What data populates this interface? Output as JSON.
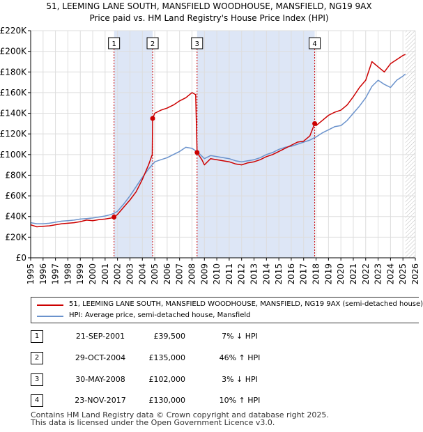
{
  "title": {
    "line1": "51, LEEMING LANE SOUTH, MANSFIELD WOODHOUSE, MANSFIELD, NG19 9AX",
    "line2": "Price paid vs. HM Land Registry's House Price Index (HPI)"
  },
  "colors": {
    "price": "#cc0000",
    "hpi": "#6a92cc",
    "shade": "#dde6f6",
    "grid": "#dddddd"
  },
  "chart_data": {
    "type": "line",
    "title": "Price paid vs. HM Land Registry's House Price Index (HPI)",
    "xlabel": "",
    "ylabel": "",
    "xlim": [
      1995,
      2026
    ],
    "ylim": [
      0,
      220000
    ],
    "y_ticks": [
      0,
      20000,
      40000,
      60000,
      80000,
      100000,
      120000,
      140000,
      160000,
      180000,
      200000,
      220000
    ],
    "y_tick_labels": [
      "£0",
      "£20K",
      "£40K",
      "£60K",
      "£80K",
      "£100K",
      "£120K",
      "£140K",
      "£160K",
      "£180K",
      "£200K",
      "£220K"
    ],
    "x_tick_labels": [
      "1995",
      "1996",
      "1997",
      "1998",
      "1999",
      "2000",
      "2001",
      "2002",
      "2003",
      "2004",
      "2005",
      "2006",
      "2007",
      "2008",
      "2009",
      "2010",
      "2011",
      "2012",
      "2013",
      "2014",
      "2015",
      "2016",
      "2017",
      "2018",
      "2019",
      "2020",
      "2021",
      "2022",
      "2023",
      "2024",
      "2025",
      "2026"
    ],
    "grid": true,
    "legend_position": "bottom",
    "shaded_spans": [
      [
        2001.72,
        2004.83
      ],
      [
        2008.41,
        2017.89
      ]
    ],
    "hatched_from": 2025.2,
    "series": [
      {
        "name": "51, LEEMING LANE SOUTH, MANSFIELD WOODHOUSE, MANSFIELD, NG19 9AX (semi-detached house)",
        "color": "#cc0000",
        "x": [
          1995,
          1995.5,
          1996,
          1996.5,
          1997,
          1997.5,
          1998,
          1998.5,
          1999,
          1999.5,
          2000,
          2000.5,
          2001,
          2001.5,
          2001.72,
          2002,
          2002.5,
          2003,
          2003.5,
          2004,
          2004.5,
          2004.8,
          2004.83,
          2005,
          2005.5,
          2006,
          2006.5,
          2007,
          2007.5,
          2008,
          2008.3,
          2008.41,
          2008.8,
          2009,
          2009.5,
          2010,
          2010.5,
          2011,
          2011.5,
          2012,
          2012.5,
          2013,
          2013.5,
          2014,
          2014.5,
          2015,
          2015.5,
          2016,
          2016.5,
          2017,
          2017.5,
          2017.89,
          2018,
          2018.5,
          2019,
          2019.5,
          2020,
          2020.5,
          2021,
          2021.5,
          2022,
          2022.5,
          2023,
          2023.5,
          2024,
          2024.5,
          2025,
          2025.2
        ],
        "y": [
          32000,
          30000,
          30500,
          31000,
          32000,
          33000,
          33500,
          34000,
          35000,
          36500,
          36000,
          37000,
          37500,
          38500,
          39500,
          42000,
          49000,
          56000,
          64000,
          76000,
          90000,
          100000,
          135000,
          140000,
          143000,
          145000,
          148000,
          152000,
          155000,
          160000,
          158000,
          102000,
          95000,
          90000,
          96000,
          95000,
          94000,
          93000,
          91000,
          90000,
          92000,
          93000,
          95000,
          98000,
          100000,
          103000,
          106000,
          109000,
          112000,
          113000,
          118000,
          130000,
          128000,
          133000,
          138000,
          141000,
          143000,
          148000,
          156000,
          165000,
          172000,
          190000,
          185000,
          180000,
          188000,
          192000,
          196000,
          197000
        ]
      },
      {
        "name": "HPI: Average price, semi-detached house, Mansfield",
        "color": "#6a92cc",
        "x": [
          1995,
          1995.5,
          1996,
          1996.5,
          1997,
          1997.5,
          1998,
          1998.5,
          1999,
          1999.5,
          2000,
          2000.5,
          2001,
          2001.5,
          2002,
          2002.5,
          2003,
          2003.5,
          2004,
          2004.5,
          2005,
          2005.5,
          2006,
          2006.5,
          2007,
          2007.5,
          2008,
          2008.5,
          2009,
          2009.5,
          2010,
          2010.5,
          2011,
          2011.5,
          2012,
          2012.5,
          2013,
          2013.5,
          2014,
          2014.5,
          2015,
          2015.5,
          2016,
          2016.5,
          2017,
          2017.5,
          2018,
          2018.5,
          2019,
          2019.5,
          2020,
          2020.5,
          2021,
          2021.5,
          2022,
          2022.5,
          2023,
          2023.5,
          2024,
          2024.5,
          2025,
          2025.2
        ],
        "y": [
          34000,
          33000,
          33000,
          33500,
          34500,
          35500,
          36000,
          36500,
          37500,
          38000,
          38500,
          39500,
          40500,
          42000,
          45000,
          52000,
          60000,
          69000,
          78000,
          86000,
          93000,
          95000,
          97000,
          100000,
          103000,
          107000,
          106000,
          102000,
          96000,
          99000,
          98000,
          97000,
          96000,
          94000,
          93000,
          94000,
          95000,
          97000,
          100000,
          102000,
          105000,
          107000,
          108000,
          110000,
          112000,
          114000,
          117000,
          121000,
          124000,
          127000,
          128000,
          133000,
          140000,
          147000,
          155000,
          166000,
          172000,
          168000,
          165000,
          172000,
          176000,
          178000
        ]
      }
    ],
    "markers": [
      {
        "label": "1",
        "x": 2001.72,
        "y": 39500
      },
      {
        "label": "2",
        "x": 2004.83,
        "y": 135000
      },
      {
        "label": "3",
        "x": 2008.41,
        "y": 102000
      },
      {
        "label": "4",
        "x": 2017.89,
        "y": 130000
      }
    ]
  },
  "legend": {
    "price_label": "51, LEEMING LANE SOUTH, MANSFIELD WOODHOUSE, MANSFIELD, NG19 9AX (semi-detached house)",
    "hpi_label": "HPI: Average price, semi-detached house, Mansfield"
  },
  "sales": [
    {
      "num": "1",
      "date": "21-SEP-2001",
      "price": "£39,500",
      "hpi": "7% ↓ HPI"
    },
    {
      "num": "2",
      "date": "29-OCT-2004",
      "price": "£135,000",
      "hpi": "46% ↑ HPI"
    },
    {
      "num": "3",
      "date": "30-MAY-2008",
      "price": "£102,000",
      "hpi": "3% ↓ HPI"
    },
    {
      "num": "4",
      "date": "23-NOV-2017",
      "price": "£130,000",
      "hpi": "10% ↑ HPI"
    }
  ],
  "footer": {
    "line1": "Contains HM Land Registry data © Crown copyright and database right 2025.",
    "line2": "This data is licensed under the Open Government Licence v3.0."
  }
}
